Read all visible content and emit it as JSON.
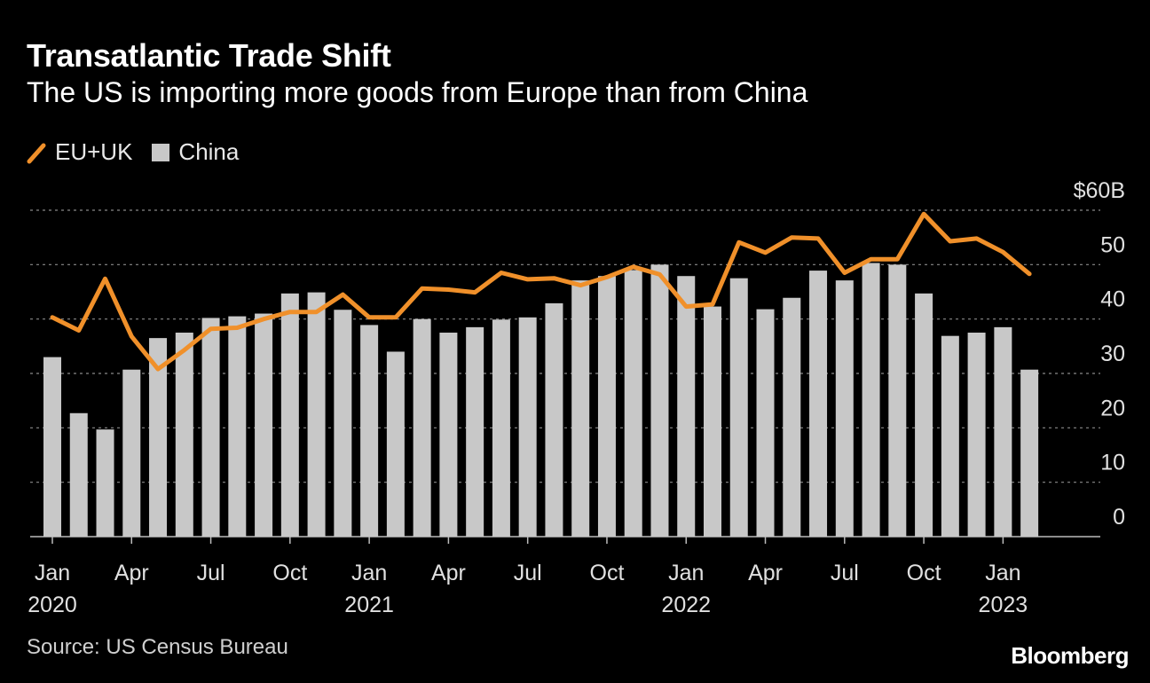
{
  "header": {
    "title": "Transatlantic Trade Shift",
    "subtitle": "The US is importing more goods from Europe than from China"
  },
  "legend": {
    "items": [
      {
        "label": "EU+UK",
        "color": "#f0902a",
        "shape": "line"
      },
      {
        "label": "China",
        "color": "#c8c8c8",
        "shape": "square"
      }
    ]
  },
  "footer": {
    "source": "Source: US Census Bureau",
    "brand": "Bloomberg"
  },
  "chart_data": {
    "type": "bar",
    "unit_label": "$60B",
    "ylim": [
      0,
      60
    ],
    "yticks": [
      0,
      10,
      20,
      30,
      40,
      50,
      60
    ],
    "ytick_labels": [
      "0",
      "10",
      "20",
      "30",
      "40",
      "50",
      "$60B"
    ],
    "grid": true,
    "legend_position": "top-left",
    "x": [
      "2020-01",
      "2020-02",
      "2020-03",
      "2020-04",
      "2020-05",
      "2020-06",
      "2020-07",
      "2020-08",
      "2020-09",
      "2020-10",
      "2020-11",
      "2020-12",
      "2021-01",
      "2021-02",
      "2021-03",
      "2021-04",
      "2021-05",
      "2021-06",
      "2021-07",
      "2021-08",
      "2021-09",
      "2021-10",
      "2021-11",
      "2021-12",
      "2022-01",
      "2022-02",
      "2022-03",
      "2022-04",
      "2022-05",
      "2022-06",
      "2022-07",
      "2022-08",
      "2022-09",
      "2022-10",
      "2022-11",
      "2022-12",
      "2023-01",
      "2023-02"
    ],
    "xtick_labels": [
      {
        "index": 0,
        "month": "Jan",
        "year": "2020"
      },
      {
        "index": 3,
        "month": "Apr",
        "year": ""
      },
      {
        "index": 6,
        "month": "Jul",
        "year": ""
      },
      {
        "index": 9,
        "month": "Oct",
        "year": ""
      },
      {
        "index": 12,
        "month": "Jan",
        "year": "2021"
      },
      {
        "index": 15,
        "month": "Apr",
        "year": ""
      },
      {
        "index": 18,
        "month": "Jul",
        "year": ""
      },
      {
        "index": 21,
        "month": "Oct",
        "year": ""
      },
      {
        "index": 24,
        "month": "Jan",
        "year": "2022"
      },
      {
        "index": 27,
        "month": "Apr",
        "year": ""
      },
      {
        "index": 30,
        "month": "Jul",
        "year": ""
      },
      {
        "index": 33,
        "month": "Oct",
        "year": ""
      },
      {
        "index": 36,
        "month": "Jan",
        "year": "2023"
      }
    ],
    "series": [
      {
        "name": "China",
        "type": "bar",
        "color": "#c8c8c8",
        "values": [
          33,
          22.7,
          19.7,
          30.7,
          36.5,
          37.5,
          40.2,
          40.5,
          41,
          44.7,
          44.9,
          41.7,
          38.9,
          34,
          40,
          37.5,
          38.5,
          39.9,
          40.3,
          42.9,
          47.1,
          47.9,
          49,
          50,
          47.9,
          42.3,
          47.5,
          41.8,
          43.9,
          48.9,
          47.1,
          50.3,
          50,
          44.7,
          36.9,
          37.5,
          38.5,
          30.7
        ]
      },
      {
        "name": "EU+UK",
        "type": "line",
        "color": "#f0902a",
        "values": [
          40.3,
          37.9,
          47.4,
          36.8,
          30.8,
          34.3,
          38.2,
          38.4,
          40,
          41.3,
          41.3,
          44.5,
          40.3,
          40.3,
          45.6,
          45.4,
          44.9,
          48.5,
          47.3,
          47.5,
          46.2,
          47.7,
          49.6,
          48.2,
          42.3,
          42.7,
          54.1,
          52.2,
          55,
          54.8,
          48.5,
          51,
          51,
          59.3,
          54.3,
          54.8,
          52.3,
          48.3
        ]
      }
    ]
  }
}
